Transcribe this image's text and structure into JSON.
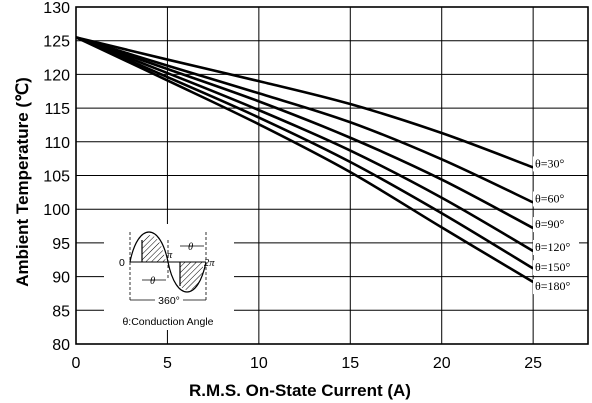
{
  "chart_data": {
    "type": "line",
    "title": "",
    "xlabel": "R.M.S. On-State Current (A)",
    "ylabel": "Ambient Temperature (℃)",
    "xlim": [
      0,
      28
    ],
    "ylim": [
      80,
      130
    ],
    "x_ticks": [
      0,
      5,
      10,
      15,
      20,
      25
    ],
    "x_tick_labels": [
      "0",
      "5",
      "10",
      "15",
      "20",
      "25"
    ],
    "y_ticks": [
      80,
      85,
      90,
      95,
      100,
      105,
      110,
      115,
      120,
      125,
      130
    ],
    "y_tick_labels": [
      "80",
      "85",
      "90",
      "95",
      "100",
      "105",
      "110",
      "115",
      "120",
      "125",
      "130"
    ],
    "grid": true,
    "x": [
      0,
      5,
      10,
      15,
      20,
      25
    ],
    "series": [
      {
        "name": "θ=30°",
        "values": [
          125.5,
          122.2,
          119.0,
          115.6,
          111.3,
          106.2
        ]
      },
      {
        "name": "θ=60°",
        "values": [
          125.5,
          121.3,
          117.2,
          112.9,
          107.4,
          101.0
        ]
      },
      {
        "name": "θ=90°",
        "values": [
          125.5,
          120.8,
          116.0,
          110.6,
          104.4,
          97.2
        ]
      },
      {
        "name": "θ=120°",
        "values": [
          125.5,
          120.2,
          114.7,
          108.7,
          101.7,
          93.8
        ]
      },
      {
        "name": "θ=150°",
        "values": [
          125.5,
          119.6,
          113.6,
          107.0,
          99.4,
          91.2
        ]
      },
      {
        "name": "θ=180°",
        "values": [
          125.5,
          119.1,
          112.6,
          105.5,
          97.3,
          89.2
        ]
      }
    ],
    "label_y": [
      106.2,
      101.0,
      97.2,
      93.8,
      90.8,
      88.0
    ],
    "inset": {
      "zero_label": "0",
      "pi_label": "π",
      "two_pi_label": "2π",
      "theta_label": "θ",
      "period_label": "360°",
      "caption": "θ:Conduction Angle"
    }
  }
}
